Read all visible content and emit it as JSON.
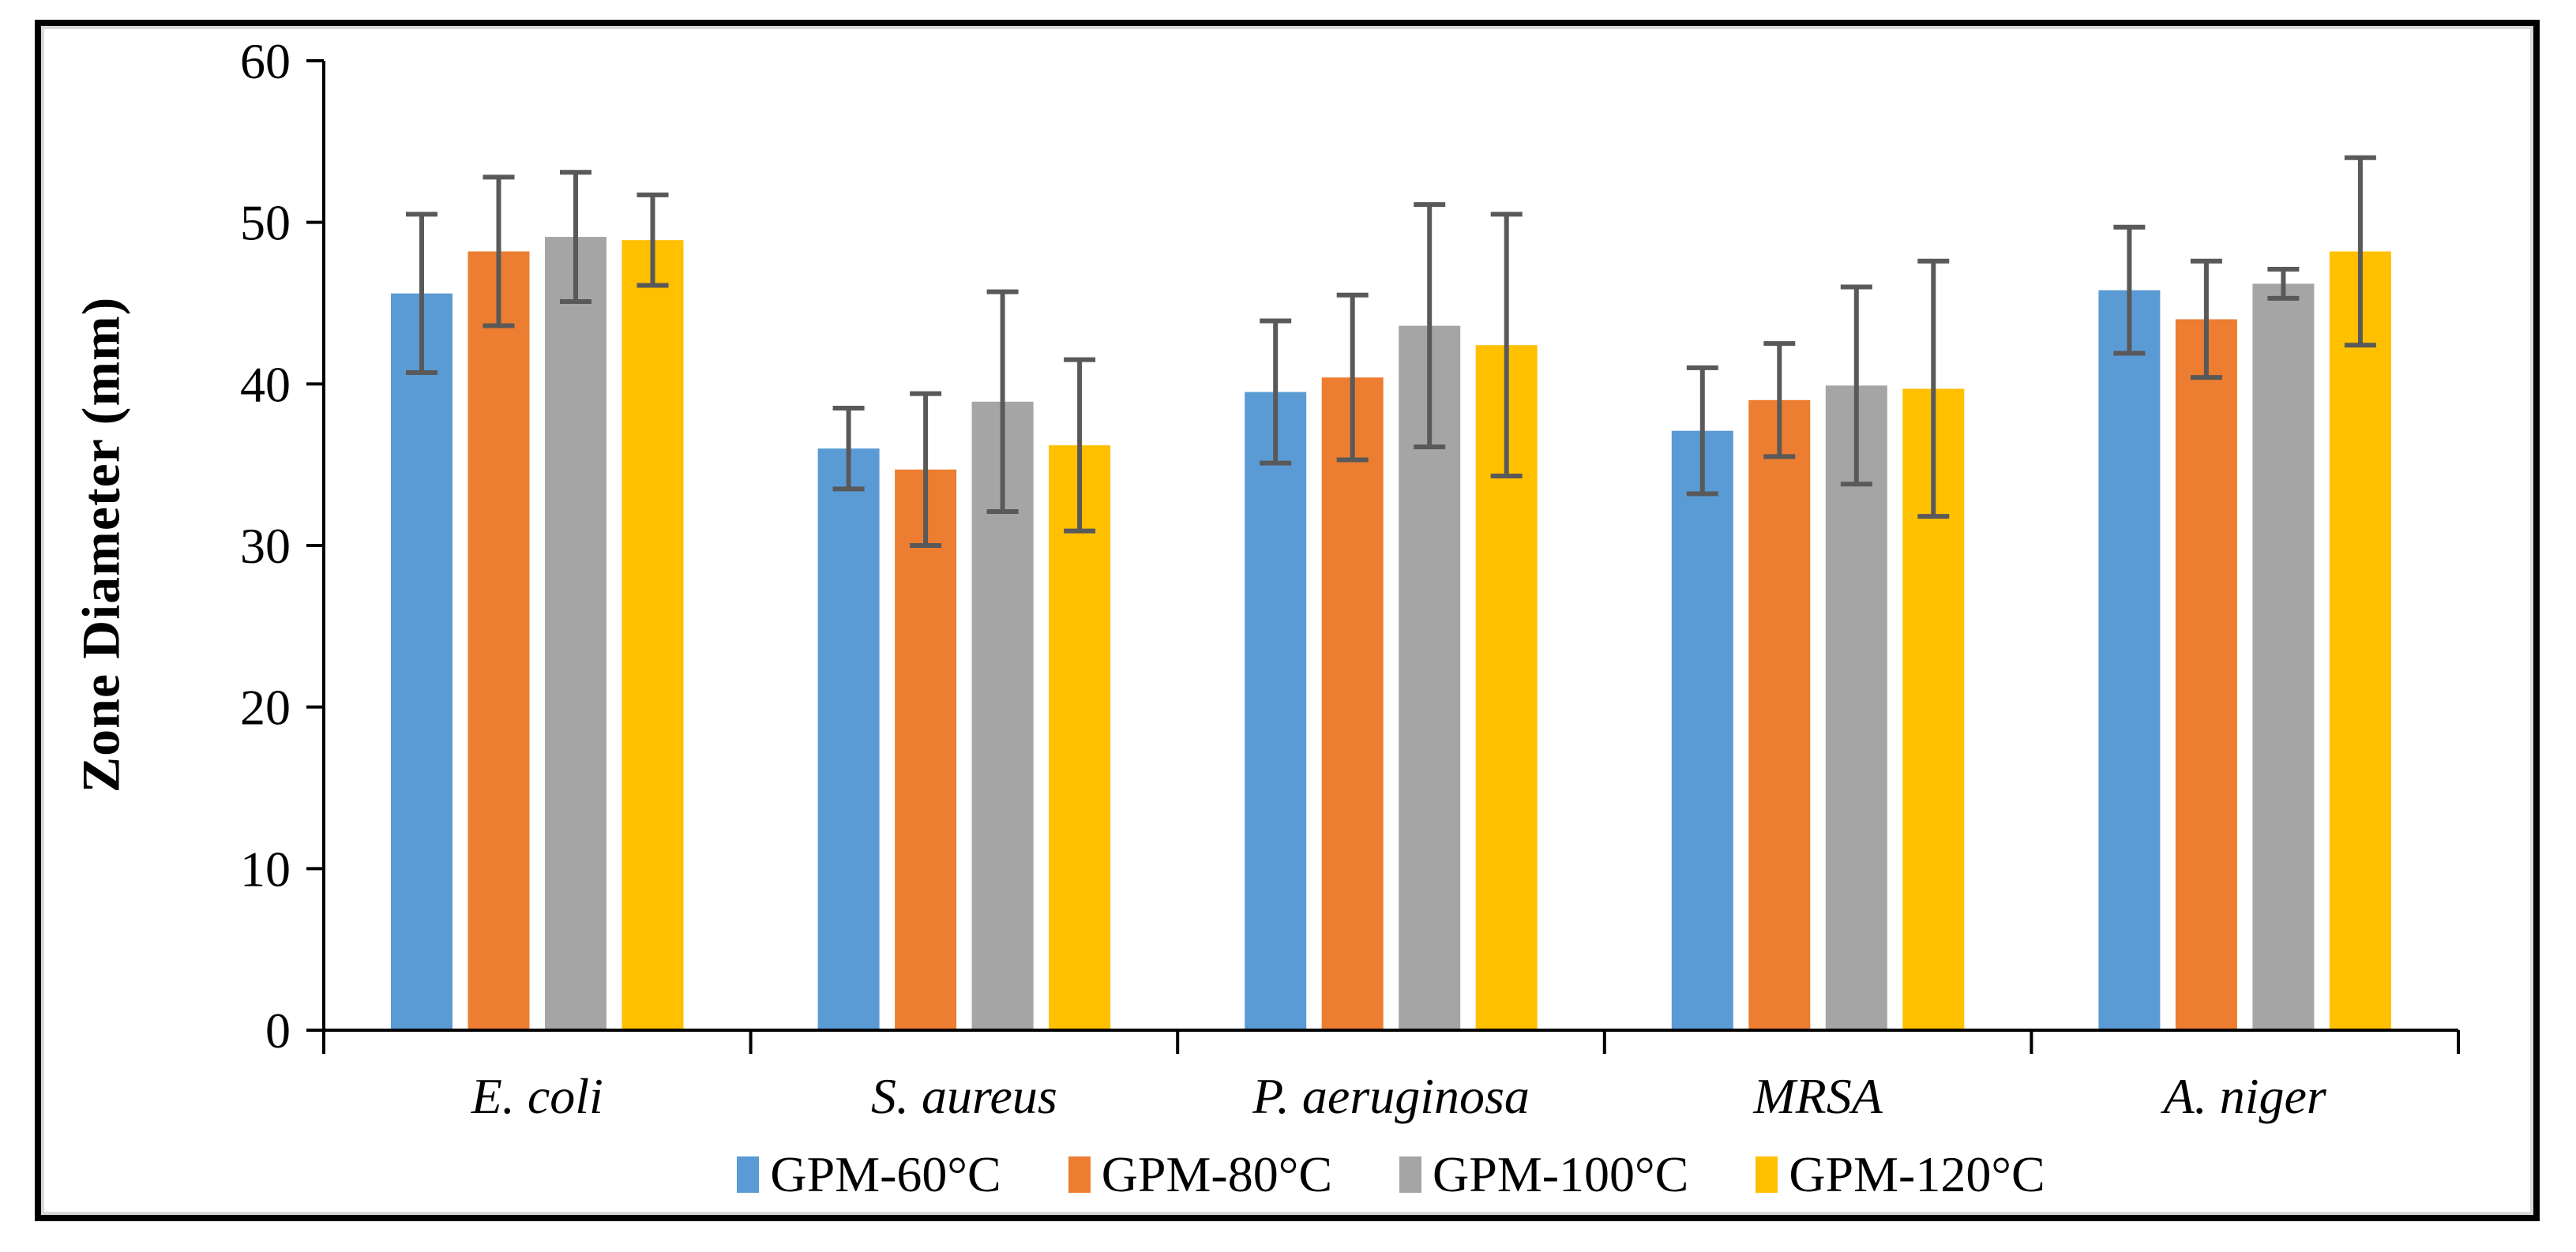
{
  "chart_data": {
    "type": "bar",
    "title": "",
    "xlabel": "",
    "ylabel": "Zone Diameter (mm)",
    "ylim": [
      0,
      60
    ],
    "yticks": [
      "0",
      "10",
      "20",
      "30",
      "40",
      "50",
      "60"
    ],
    "grid": false,
    "legend_position": "bottom",
    "categories": [
      "E. coli",
      "S. aureus",
      "P. aeruginosa",
      "MRSA",
      "A. niger"
    ],
    "categories_italic": true,
    "series": [
      {
        "name": "GPM-60°C",
        "color": "#5B9BD5",
        "values": [
          45.6,
          36.0,
          39.5,
          37.1,
          45.8
        ],
        "errors": [
          4.9,
          2.5,
          4.4,
          3.9,
          3.9
        ]
      },
      {
        "name": "GPM-80°C",
        "color": "#ED7D31",
        "values": [
          48.2,
          34.7,
          40.4,
          39.0,
          44.0
        ],
        "errors": [
          4.6,
          4.7,
          5.1,
          3.5,
          3.6
        ]
      },
      {
        "name": "GPM-100°C",
        "color": "#A5A5A5",
        "values": [
          49.1,
          38.9,
          43.6,
          39.9,
          46.2
        ],
        "errors": [
          4.0,
          6.8,
          7.5,
          6.1,
          0.9
        ]
      },
      {
        "name": "GPM-120°C",
        "color": "#FFC000",
        "values": [
          48.9,
          36.2,
          42.4,
          39.7,
          48.2
        ],
        "errors": [
          2.8,
          5.3,
          8.1,
          7.9,
          5.8
        ]
      }
    ],
    "error_bar_color": "#595959",
    "axis_color": "#000000"
  }
}
